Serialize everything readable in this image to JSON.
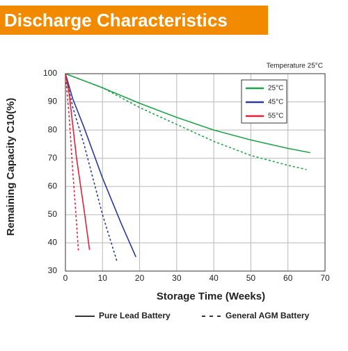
{
  "chart_data": {
    "type": "line",
    "title": "Discharge Characteristics",
    "annotation": "Temperature 25°C",
    "x_label": "Storage Time (Weeks)",
    "y_label": "Remaining Capacity C10(%)",
    "xlim": [
      0,
      70
    ],
    "xticks": [
      0,
      10,
      20,
      30,
      40,
      50,
      60,
      70
    ],
    "ylim": [
      30,
      100
    ],
    "yticks": [
      30,
      40,
      50,
      60,
      70,
      80,
      90,
      100
    ],
    "grid": true,
    "temperature_legend": [
      {
        "label": "25°C",
        "color": "#1fa34a"
      },
      {
        "label": "45°C",
        "color": "#2b3a97"
      },
      {
        "label": "55°C",
        "color": "#e0213a"
      }
    ],
    "style_legend": [
      {
        "label": "Pure Lead Battery",
        "dashed": false
      },
      {
        "label": "General AGM Battery",
        "dashed": true
      }
    ],
    "series": [
      {
        "color": "#1fa34a",
        "dashed": false,
        "x": [
          0,
          10,
          20,
          30,
          40,
          50,
          60,
          66
        ],
        "values": [
          100,
          95,
          89.5,
          84.5,
          80,
          76.5,
          73.5,
          72
        ]
      },
      {
        "color": "#1fa34a",
        "dashed": true,
        "x": [
          0,
          10,
          20,
          30,
          40,
          50,
          60,
          65
        ],
        "values": [
          100,
          95,
          88,
          82,
          76,
          71,
          67.5,
          66
        ]
      },
      {
        "color": "#2b3a97",
        "dashed": false,
        "x": [
          0,
          2,
          5,
          10,
          15,
          19
        ],
        "values": [
          100,
          91,
          81,
          63,
          47,
          35
        ]
      },
      {
        "color": "#2b3a97",
        "dashed": true,
        "x": [
          0,
          2,
          5,
          10,
          14
        ],
        "values": [
          100,
          88,
          75,
          50,
          33
        ]
      },
      {
        "color": "#e0213a",
        "dashed": false,
        "x": [
          0,
          1,
          3,
          5,
          6.5
        ],
        "values": [
          100,
          93,
          70,
          52,
          37.5
        ]
      },
      {
        "color": "#e0213a",
        "dashed": true,
        "x": [
          0,
          1,
          2,
          3,
          3.5
        ],
        "values": [
          100,
          85,
          65,
          47,
          37
        ]
      }
    ]
  }
}
